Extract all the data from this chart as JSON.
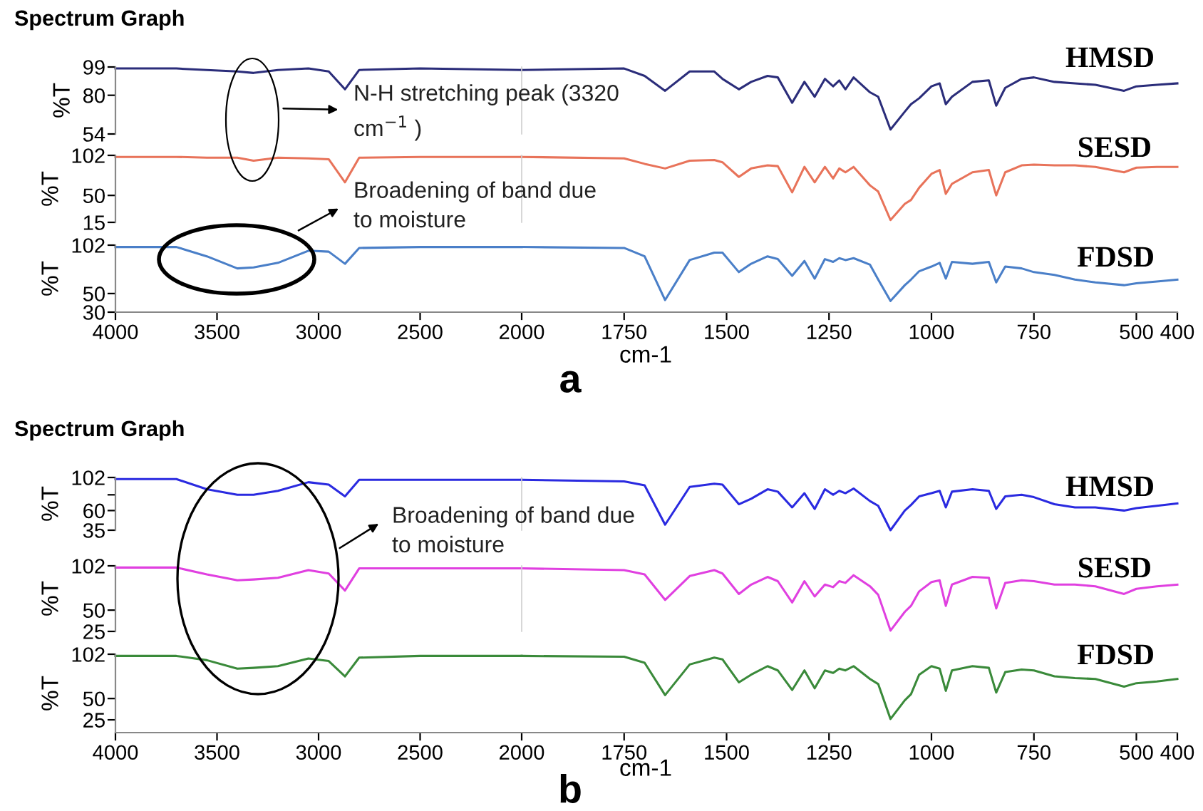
{
  "chart_data": [
    {
      "type": "line",
      "title": "Spectrum Graph",
      "ylabel": "%T",
      "xlim": [
        4000,
        2000
      ],
      "ylim": [
        54,
        99
      ],
      "yticks": [
        99,
        80,
        54
      ],
      "tick_labels": "y",
      "annotations": [
        "N-H stretching peak (3320\ncm$^{−1}$ )"
      ],
      "x": [
        4000,
        3700,
        3550,
        3400,
        3320,
        3200,
        3050,
        2950,
        2870,
        2800,
        2500,
        2000
      ],
      "series": [
        {
          "color": "#2b2d7a",
          "values": [
            98,
            98,
            97,
            96,
            95,
            97,
            98,
            96,
            84,
            97,
            98,
            97
          ]
        }
      ]
    },
    {
      "type": "line",
      "xlim": [
        2000,
        400
      ],
      "ylim": [
        54,
        99
      ],
      "tick_labels": false,
      "x": [
        2000,
        1750,
        1700,
        1650,
        1590,
        1530,
        1510,
        1470,
        1440,
        1400,
        1375,
        1340,
        1310,
        1285,
        1260,
        1240,
        1225,
        1210,
        1190,
        1150,
        1130,
        1100,
        1065,
        1050,
        1030,
        1000,
        980,
        965,
        950,
        900,
        860,
        842,
        820,
        780,
        750,
        700,
        650,
        600,
        530,
        500,
        450,
        400
      ],
      "series": [
        {
          "name": "HMSD",
          "color": "#2b2d7a",
          "values": [
            97,
            98,
            93,
            83,
            96,
            96,
            91,
            84,
            89,
            93,
            92,
            75,
            89,
            79,
            91,
            86,
            90,
            84,
            92,
            82,
            79,
            57,
            69,
            74,
            78,
            86,
            88,
            74,
            79,
            89,
            90,
            73,
            85,
            91,
            92,
            89,
            88,
            87,
            83,
            86,
            87,
            88
          ]
        }
      ]
    },
    {
      "type": "line",
      "ylabel": "%T",
      "xlim": [
        4000,
        2000
      ],
      "ylim": [
        15,
        102
      ],
      "yticks": [
        102,
        50,
        15
      ],
      "tick_labels": "y",
      "x": [
        4000,
        3700,
        3550,
        3400,
        3320,
        3200,
        3050,
        2950,
        2870,
        2800,
        2500,
        2000
      ],
      "series": [
        {
          "color": "#e8735a",
          "values": [
            100,
            100,
            99,
            99,
            95,
            99,
            98,
            97,
            67,
            99,
            100,
            100
          ]
        }
      ]
    },
    {
      "type": "line",
      "xlim": [
        2000,
        400
      ],
      "ylim": [
        15,
        102
      ],
      "tick_labels": false,
      "x": [
        2000,
        1750,
        1700,
        1650,
        1590,
        1530,
        1510,
        1470,
        1440,
        1400,
        1375,
        1340,
        1310,
        1285,
        1260,
        1240,
        1225,
        1210,
        1190,
        1150,
        1130,
        1100,
        1065,
        1050,
        1030,
        1000,
        980,
        965,
        950,
        900,
        860,
        842,
        820,
        780,
        750,
        700,
        650,
        600,
        530,
        500,
        450,
        400
      ],
      "series": [
        {
          "name": "SESD",
          "color": "#e8735a",
          "values": [
            100,
            98,
            91,
            85,
            95,
            96,
            93,
            74,
            85,
            89,
            88,
            54,
            87,
            67,
            87,
            72,
            85,
            80,
            87,
            63,
            55,
            18,
            39,
            44,
            60,
            78,
            83,
            52,
            65,
            80,
            83,
            50,
            80,
            89,
            90,
            89,
            89,
            87,
            80,
            86,
            87,
            87
          ]
        }
      ]
    },
    {
      "type": "line",
      "ylabel": "%T",
      "xlim": [
        4000,
        2000
      ],
      "xticks": [
        4000,
        3500,
        3000,
        2500,
        2000
      ],
      "ylim": [
        30,
        102
      ],
      "yticks": [
        102,
        50,
        30
      ],
      "annotations": [
        "Broadening of band due\nto moisture",
        "a"
      ],
      "x": [
        4000,
        3700,
        3550,
        3400,
        3320,
        3200,
        3050,
        2950,
        2870,
        2800,
        2500,
        2000
      ],
      "series": [
        {
          "color": "#4a7fc8",
          "values": [
            100,
            100,
            90,
            77,
            78,
            83,
            96,
            95,
            82,
            99,
            100,
            100
          ]
        }
      ]
    },
    {
      "type": "line",
      "xlabel": "cm-1",
      "xlim": [
        2000,
        400
      ],
      "xticks": [
        1750,
        1500,
        1250,
        1000,
        750,
        500,
        400
      ],
      "ylim": [
        30,
        102
      ],
      "tick_labels": "x",
      "x": [
        2000,
        1750,
        1700,
        1650,
        1590,
        1530,
        1510,
        1470,
        1440,
        1400,
        1375,
        1340,
        1310,
        1285,
        1260,
        1240,
        1225,
        1210,
        1190,
        1150,
        1130,
        1100,
        1065,
        1050,
        1030,
        1000,
        980,
        965,
        950,
        900,
        860,
        842,
        820,
        780,
        750,
        700,
        650,
        600,
        530,
        500,
        450,
        400
      ],
      "series": [
        {
          "name": "FDSD",
          "color": "#4a7fc8",
          "values": [
            100,
            99,
            90,
            43,
            86,
            94,
            94,
            73,
            82,
            90,
            87,
            69,
            85,
            66,
            87,
            84,
            88,
            86,
            88,
            81,
            65,
            42,
            59,
            65,
            74,
            79,
            83,
            66,
            84,
            82,
            84,
            62,
            79,
            77,
            73,
            70,
            65,
            62,
            59,
            61,
            63,
            65
          ]
        }
      ]
    },
    {
      "type": "line",
      "title": "Spectrum Graph",
      "ylabel": "%T",
      "xlim": [
        4000,
        2000
      ],
      "ylim": [
        35,
        102
      ],
      "yticks": [
        102,
        {
          "value": 80,
          "label": null
        },
        60,
        35
      ],
      "tick_labels": "y",
      "annotations": [
        "Broadening of band due\nto moisture"
      ],
      "x": [
        4000,
        3700,
        3550,
        3400,
        3320,
        3200,
        3050,
        2950,
        2870,
        2800,
        2500,
        2000
      ],
      "series": [
        {
          "color": "#2a2ae0",
          "values": [
            100,
            100,
            87,
            80,
            80,
            85,
            96,
            93,
            78,
            99,
            99,
            99
          ]
        }
      ]
    },
    {
      "type": "line",
      "xlim": [
        2000,
        400
      ],
      "ylim": [
        35,
        102
      ],
      "tick_labels": false,
      "x": [
        2000,
        1750,
        1700,
        1650,
        1590,
        1530,
        1510,
        1470,
        1440,
        1400,
        1375,
        1340,
        1310,
        1285,
        1260,
        1240,
        1225,
        1210,
        1190,
        1150,
        1130,
        1100,
        1065,
        1050,
        1030,
        1000,
        980,
        965,
        950,
        900,
        860,
        842,
        820,
        780,
        750,
        700,
        650,
        600,
        530,
        500,
        450,
        400
      ],
      "series": [
        {
          "name": "HMSD",
          "color": "#2a2ae0",
          "values": [
            99,
            97,
            92,
            42,
            90,
            94,
            93,
            68,
            75,
            87,
            84,
            64,
            82,
            62,
            87,
            80,
            85,
            82,
            88,
            72,
            66,
            35,
            60,
            67,
            78,
            82,
            85,
            64,
            84,
            87,
            85,
            62,
            78,
            80,
            77,
            68,
            64,
            64,
            60,
            63,
            66,
            69
          ]
        }
      ]
    },
    {
      "type": "line",
      "ylabel": "%T",
      "xlim": [
        4000,
        2000
      ],
      "ylim": [
        25,
        102
      ],
      "yticks": [
        102,
        50,
        25
      ],
      "tick_labels": "y",
      "x": [
        4000,
        3700,
        3550,
        3400,
        3320,
        3200,
        3050,
        2950,
        2870,
        2800,
        2500,
        2000
      ],
      "series": [
        {
          "color": "#e040e0",
          "values": [
            100,
            100,
            92,
            85,
            86,
            88,
            97,
            93,
            73,
            99,
            99,
            99
          ]
        }
      ]
    },
    {
      "type": "line",
      "xlim": [
        2000,
        400
      ],
      "ylim": [
        25,
        102
      ],
      "tick_labels": false,
      "x": [
        2000,
        1750,
        1700,
        1650,
        1590,
        1530,
        1510,
        1470,
        1440,
        1400,
        1375,
        1340,
        1310,
        1285,
        1260,
        1240,
        1225,
        1210,
        1190,
        1150,
        1130,
        1100,
        1065,
        1050,
        1030,
        1000,
        980,
        965,
        950,
        900,
        860,
        842,
        820,
        780,
        750,
        700,
        650,
        600,
        530,
        500,
        450,
        400
      ],
      "series": [
        {
          "name": "SESD",
          "color": "#e040e0",
          "values": [
            99,
            97,
            92,
            62,
            90,
            97,
            93,
            69,
            80,
            89,
            84,
            59,
            84,
            66,
            80,
            77,
            84,
            82,
            91,
            78,
            68,
            26,
            48,
            55,
            72,
            83,
            85,
            55,
            80,
            89,
            88,
            52,
            82,
            85,
            84,
            80,
            80,
            78,
            69,
            75,
            78,
            80
          ]
        }
      ]
    },
    {
      "type": "line",
      "ylabel": "%T",
      "xlim": [
        4000,
        2000
      ],
      "xticks": [
        4000,
        3500,
        3000,
        2500,
        2000
      ],
      "ylim": [
        10,
        102
      ],
      "yticks": [
        102,
        50,
        25
      ],
      "annotations": [
        "b"
      ],
      "x": [
        4000,
        3700,
        3550,
        3400,
        3320,
        3200,
        3050,
        2950,
        2870,
        2800,
        2500,
        2000
      ],
      "series": [
        {
          "color": "#3a8a3a",
          "values": [
            100,
            100,
            95,
            85,
            86,
            88,
            97,
            94,
            76,
            98,
            100,
            100
          ]
        }
      ]
    },
    {
      "type": "line",
      "xlabel": "cm-1",
      "xlim": [
        2000,
        400
      ],
      "xticks": [
        1750,
        1500,
        1250,
        1000,
        750,
        500,
        400
      ],
      "ylim": [
        10,
        102
      ],
      "tick_labels": "x",
      "x": [
        2000,
        1750,
        1700,
        1650,
        1590,
        1530,
        1510,
        1470,
        1440,
        1400,
        1375,
        1340,
        1310,
        1285,
        1260,
        1240,
        1225,
        1210,
        1190,
        1150,
        1130,
        1100,
        1065,
        1050,
        1030,
        1000,
        980,
        965,
        950,
        900,
        860,
        842,
        820,
        780,
        750,
        700,
        650,
        600,
        530,
        500,
        450,
        400
      ],
      "series": [
        {
          "name": "FDSD",
          "color": "#3a8a3a",
          "values": [
            100,
            99,
            92,
            54,
            90,
            98,
            96,
            69,
            78,
            88,
            83,
            60,
            83,
            62,
            83,
            80,
            85,
            83,
            88,
            73,
            67,
            26,
            48,
            55,
            78,
            88,
            85,
            59,
            83,
            88,
            86,
            57,
            81,
            84,
            83,
            76,
            74,
            73,
            64,
            68,
            70,
            73
          ]
        }
      ]
    }
  ]
}
